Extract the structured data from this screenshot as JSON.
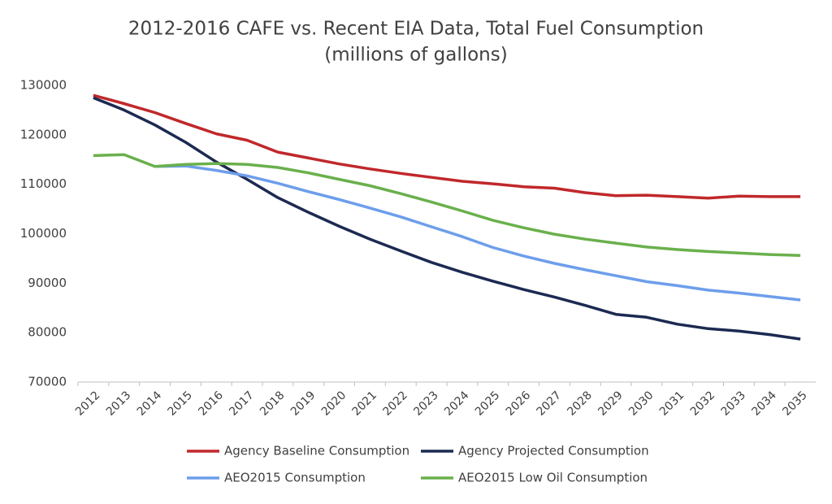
{
  "chart_data": {
    "type": "line",
    "title": "2012-2016 CAFE vs. Recent EIA Data, Total Fuel Consumption",
    "subtitle": "(millions of gallons)",
    "categories": [
      "2012",
      "2013",
      "2014",
      "2015",
      "2016",
      "2017",
      "2018",
      "2019",
      "2020",
      "2021",
      "2022",
      "2023",
      "2024",
      "2025",
      "2026",
      "2027",
      "2028",
      "2029",
      "2030",
      "2031",
      "2032",
      "2033",
      "2034",
      "2035"
    ],
    "series": [
      {
        "name": "Agency Baseline Consumption",
        "color": "#c0282b",
        "values": [
          128000,
          126300,
          124500,
          122300,
          120200,
          118900,
          116500,
          115300,
          114100,
          113100,
          112200,
          111400,
          110600,
          110100,
          109500,
          109200,
          108300,
          107700,
          107800,
          107500,
          107200,
          107600,
          107500,
          107500
        ]
      },
      {
        "name": "Agency Projected Consumption",
        "color": "#1c2a52",
        "values": [
          127500,
          125000,
          122000,
          118500,
          114500,
          111000,
          107300,
          104300,
          101500,
          98900,
          96500,
          94200,
          92200,
          90400,
          88700,
          87200,
          85500,
          83700,
          83100,
          81700,
          80800,
          80300,
          79600,
          78700
        ]
      },
      {
        "name": "AEO2015 Consumption",
        "color": "#6d9eeb",
        "values": [
          null,
          null,
          113600,
          113700,
          112800,
          111700,
          110200,
          108500,
          106900,
          105200,
          103400,
          101400,
          99400,
          97200,
          95500,
          94000,
          92700,
          91500,
          90300,
          89500,
          88600,
          88000,
          87300,
          86600
        ]
      },
      {
        "name": "AEO2015 Low Oil Consumption",
        "color": "#6ab04c",
        "values": [
          115800,
          116000,
          113600,
          114000,
          114200,
          114000,
          113400,
          112300,
          111000,
          109700,
          108100,
          106400,
          104600,
          102700,
          101200,
          99900,
          98900,
          98100,
          97300,
          96800,
          96400,
          96100,
          95800,
          95600
        ]
      }
    ],
    "ylim": [
      70000,
      130000
    ],
    "yticks": [
      70000,
      80000,
      90000,
      100000,
      110000,
      120000,
      130000
    ],
    "grid": false,
    "legend": "bottom"
  }
}
